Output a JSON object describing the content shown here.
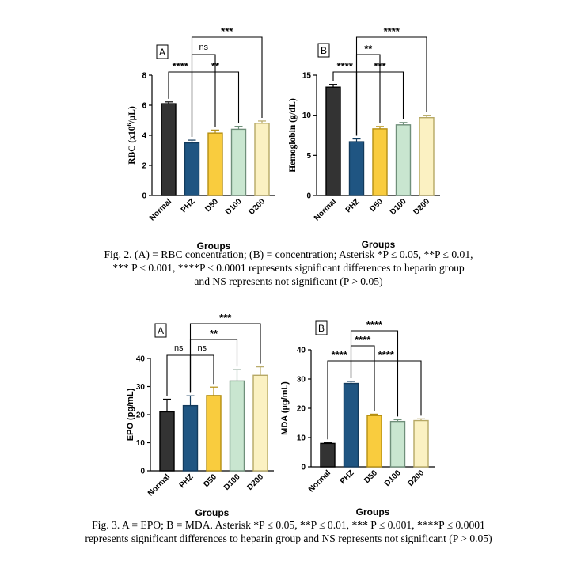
{
  "colors": {
    "normal": "#333333",
    "phz": "#1f5582",
    "d50": "#f9cc3e",
    "d100": "#c9e6d0",
    "d200": "#fbf1c2"
  },
  "chart_data": [
    {
      "id": "fig2a",
      "type": "bar",
      "panel_label": "A",
      "categories": [
        "Normal",
        "PHZ",
        "D50",
        "D100",
        "D200"
      ],
      "values": [
        6.1,
        3.5,
        4.15,
        4.4,
        4.8
      ],
      "errors": [
        0.12,
        0.18,
        0.2,
        0.2,
        0.15
      ],
      "ylabel_prefix": "RBC (x10",
      "ylabel_sup": "6",
      "ylabel_suffix": "/µL)",
      "xlabel": "Groups",
      "ylim": [
        0,
        8
      ],
      "yticks": [
        0,
        2,
        4,
        6,
        8
      ],
      "brackets": [
        {
          "from": 0,
          "to": 1,
          "level": 1,
          "label": "****"
        },
        {
          "from": 1,
          "to": 2,
          "level": 2,
          "label": "ns"
        },
        {
          "from": 1,
          "to": 3,
          "level": 1,
          "label": "**"
        },
        {
          "from": 1,
          "to": 4,
          "level": 3,
          "label": "***"
        }
      ]
    },
    {
      "id": "fig2b",
      "type": "bar",
      "panel_label": "B",
      "categories": [
        "Normal",
        "PHZ",
        "D50",
        "D100",
        "D200"
      ],
      "values": [
        13.5,
        6.7,
        8.3,
        8.8,
        9.7
      ],
      "errors": [
        0.35,
        0.35,
        0.3,
        0.3,
        0.3
      ],
      "ylabel": "Hemoglobin (g/dL)",
      "xlabel": "Groups",
      "ylim": [
        0,
        15
      ],
      "yticks": [
        0,
        5,
        10,
        15
      ],
      "brackets": [
        {
          "from": 0,
          "to": 1,
          "level": 1,
          "label": "****"
        },
        {
          "from": 1,
          "to": 2,
          "level": 2,
          "label": "**"
        },
        {
          "from": 1,
          "to": 3,
          "level": 1,
          "label": "***"
        },
        {
          "from": 1,
          "to": 4,
          "level": 3,
          "label": "****"
        }
      ]
    },
    {
      "id": "fig3a",
      "type": "bar",
      "panel_label": "A",
      "categories": [
        "Normal",
        "PHZ",
        "D50",
        "D100",
        "D200"
      ],
      "values": [
        21,
        23.2,
        26.8,
        32,
        34
      ],
      "errors": [
        4.5,
        3.5,
        3,
        4,
        3
      ],
      "ylabel": "EPO (pg/mL)",
      "xlabel": "Groups",
      "ylim": [
        0,
        40
      ],
      "yticks": [
        0,
        10,
        20,
        30,
        40
      ],
      "brackets": [
        {
          "from": 0,
          "to": 1,
          "level": 1,
          "label": "ns"
        },
        {
          "from": 1,
          "to": 2,
          "level": 1,
          "label": "ns"
        },
        {
          "from": 1,
          "to": 3,
          "level": 2,
          "label": "**"
        },
        {
          "from": 1,
          "to": 4,
          "level": 3,
          "label": "***"
        }
      ]
    },
    {
      "id": "fig3b",
      "type": "bar",
      "panel_label": "B",
      "categories": [
        "Normal",
        "PHZ",
        "D50",
        "D100",
        "D200"
      ],
      "values": [
        8.0,
        28.5,
        17.5,
        15.5,
        15.8
      ],
      "errors": [
        0.3,
        0.7,
        0.5,
        0.6,
        0.6
      ],
      "ylabel": "MDA (µg/mL)",
      "xlabel": "Groups",
      "ylim": [
        0,
        40
      ],
      "yticks": [
        0,
        10,
        20,
        30,
        40
      ],
      "brackets": [
        {
          "from": 0,
          "to": 1,
          "level": 1,
          "label": "****"
        },
        {
          "from": 1,
          "to": 2,
          "level": 2,
          "label": "****"
        },
        {
          "from": 1,
          "to": 3,
          "level": 3,
          "label": "****"
        },
        {
          "from": 1,
          "to": 4,
          "level": 1,
          "label": "****"
        }
      ]
    }
  ],
  "captions": {
    "fig2": [
      "Fig. 2. (A) = RBC concentration; (B) = concentration; Asterisk *P ≤ 0.05, **P ≤ 0.01,",
      "*** P ≤ 0.001, ****P ≤ 0.0001 represents significant differences to heparin group",
      "and NS represents not significant (P > 0.05)"
    ],
    "fig3": [
      "Fig. 3. A =  EPO; B = MDA. Asterisk *P ≤ 0.05, **P ≤ 0.01, *** P ≤ 0.001, ****P ≤ 0.0001",
      "represents significant differences to heparin group and NS represents not significant (P > 0.05)"
    ]
  }
}
